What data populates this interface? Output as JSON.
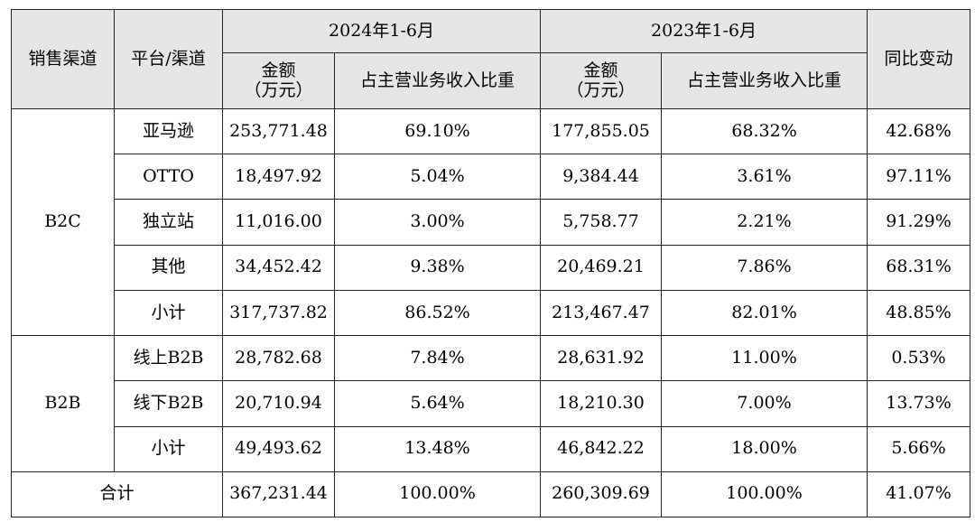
{
  "headers": {
    "channel": "销售渠道",
    "platform": "平台/渠道",
    "period_2024": "2024年1-6月",
    "period_2023": "2023年1-6月",
    "amount_line1": "金额",
    "amount_line2": "（万元）",
    "ratio": "占主营业务收入比重",
    "yoy": "同比变动"
  },
  "groups": [
    {
      "name": "B2C",
      "rows": [
        {
          "platform": "亚马逊",
          "amt24": "253,771.48",
          "pct24": "69.10%",
          "amt23": "177,855.05",
          "pct23": "68.32%",
          "yoy": "42.68%"
        },
        {
          "platform": "OTTO",
          "amt24": "18,497.92",
          "pct24": "5.04%",
          "amt23": "9,384.44",
          "pct23": "3.61%",
          "yoy": "97.11%"
        },
        {
          "platform": "独立站",
          "amt24": "11,016.00",
          "pct24": "3.00%",
          "amt23": "5,758.77",
          "pct23": "2.21%",
          "yoy": "91.29%"
        },
        {
          "platform": "其他",
          "amt24": "34,452.42",
          "pct24": "9.38%",
          "amt23": "20,469.21",
          "pct23": "7.86%",
          "yoy": "68.31%"
        },
        {
          "platform": "小计",
          "amt24": "317,737.82",
          "pct24": "86.52%",
          "amt23": "213,467.47",
          "pct23": "82.01%",
          "yoy": "48.85%"
        }
      ]
    },
    {
      "name": "B2B",
      "rows": [
        {
          "platform": "线上B2B",
          "amt24": "28,782.68",
          "pct24": "7.84%",
          "amt23": "28,631.92",
          "pct23": "11.00%",
          "yoy": "0.53%"
        },
        {
          "platform": "线下B2B",
          "amt24": "20,710.94",
          "pct24": "5.64%",
          "amt23": "18,210.30",
          "pct23": "7.00%",
          "yoy": "13.73%"
        },
        {
          "platform": "小计",
          "amt24": "49,493.62",
          "pct24": "13.48%",
          "amt23": "46,842.22",
          "pct23": "18.00%",
          "yoy": "5.66%"
        }
      ]
    }
  ],
  "total": {
    "label": "合计",
    "amt24": "367,231.44",
    "pct24": "100.00%",
    "amt23": "260,309.69",
    "pct23": "100.00%",
    "yoy": "41.07%"
  },
  "colors": {
    "header_bg": "#e7e6e6",
    "border": "#222222"
  }
}
